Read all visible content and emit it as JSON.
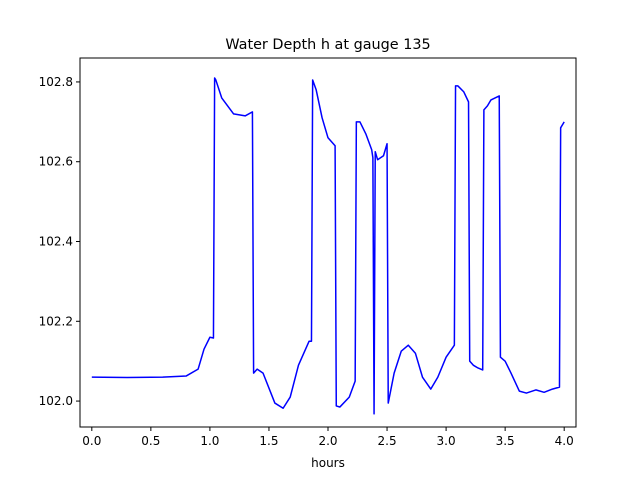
{
  "chart_data": {
    "type": "line",
    "title": "Water Depth h at gauge 135",
    "xlabel": "hours",
    "ylabel": "",
    "xlim": [
      -0.1,
      4.1
    ],
    "ylim": [
      101.935,
      102.86
    ],
    "xticks": [
      0.0,
      0.5,
      1.0,
      1.5,
      2.0,
      2.5,
      3.0,
      3.5,
      4.0
    ],
    "xtick_labels": [
      "0.0",
      "0.5",
      "1.0",
      "1.5",
      "2.0",
      "2.5",
      "3.0",
      "3.5",
      "4.0"
    ],
    "yticks": [
      102.0,
      102.2,
      102.4,
      102.6,
      102.8
    ],
    "ytick_labels": [
      "102.0",
      "102.2",
      "102.4",
      "102.6",
      "102.8"
    ],
    "grid": false,
    "series": [
      {
        "color": "#0000ff",
        "x": [
          0.0,
          0.3,
          0.6,
          0.8,
          0.9,
          0.95,
          1.0,
          1.03,
          1.04,
          1.05,
          1.1,
          1.2,
          1.3,
          1.36,
          1.37,
          1.4,
          1.45,
          1.55,
          1.62,
          1.68,
          1.75,
          1.84,
          1.86,
          1.87,
          1.9,
          1.95,
          2.0,
          2.06,
          2.07,
          2.1,
          2.18,
          2.23,
          2.24,
          2.27,
          2.32,
          2.37,
          2.38,
          2.39,
          2.4,
          2.42,
          2.47,
          2.5,
          2.51,
          2.52,
          2.56,
          2.62,
          2.68,
          2.74,
          2.8,
          2.87,
          2.93,
          3.0,
          3.07,
          3.08,
          3.1,
          3.15,
          3.19,
          3.2,
          3.23,
          3.27,
          3.31,
          3.32,
          3.35,
          3.38,
          3.45,
          3.46,
          3.5,
          3.55,
          3.62,
          3.68,
          3.76,
          3.83,
          3.9,
          3.96,
          3.97,
          3.99,
          4.0
        ],
        "y": [
          102.06,
          102.059,
          102.06,
          102.063,
          102.08,
          102.13,
          102.16,
          102.158,
          102.81,
          102.805,
          102.76,
          102.72,
          102.715,
          102.725,
          102.07,
          102.08,
          102.07,
          101.995,
          101.982,
          102.01,
          102.09,
          102.15,
          102.15,
          102.805,
          102.78,
          102.71,
          102.66,
          102.64,
          101.988,
          101.985,
          102.01,
          102.05,
          102.7,
          102.7,
          102.67,
          102.63,
          102.61,
          101.968,
          102.625,
          102.605,
          102.615,
          102.645,
          101.995,
          102.01,
          102.07,
          102.125,
          102.14,
          102.12,
          102.06,
          102.03,
          102.06,
          102.11,
          102.14,
          102.79,
          102.79,
          102.775,
          102.75,
          102.1,
          102.09,
          102.083,
          102.078,
          102.73,
          102.74,
          102.755,
          102.765,
          102.11,
          102.1,
          102.07,
          102.025,
          102.02,
          102.028,
          102.022,
          102.03,
          102.035,
          102.685,
          102.695,
          102.7
        ]
      }
    ]
  }
}
